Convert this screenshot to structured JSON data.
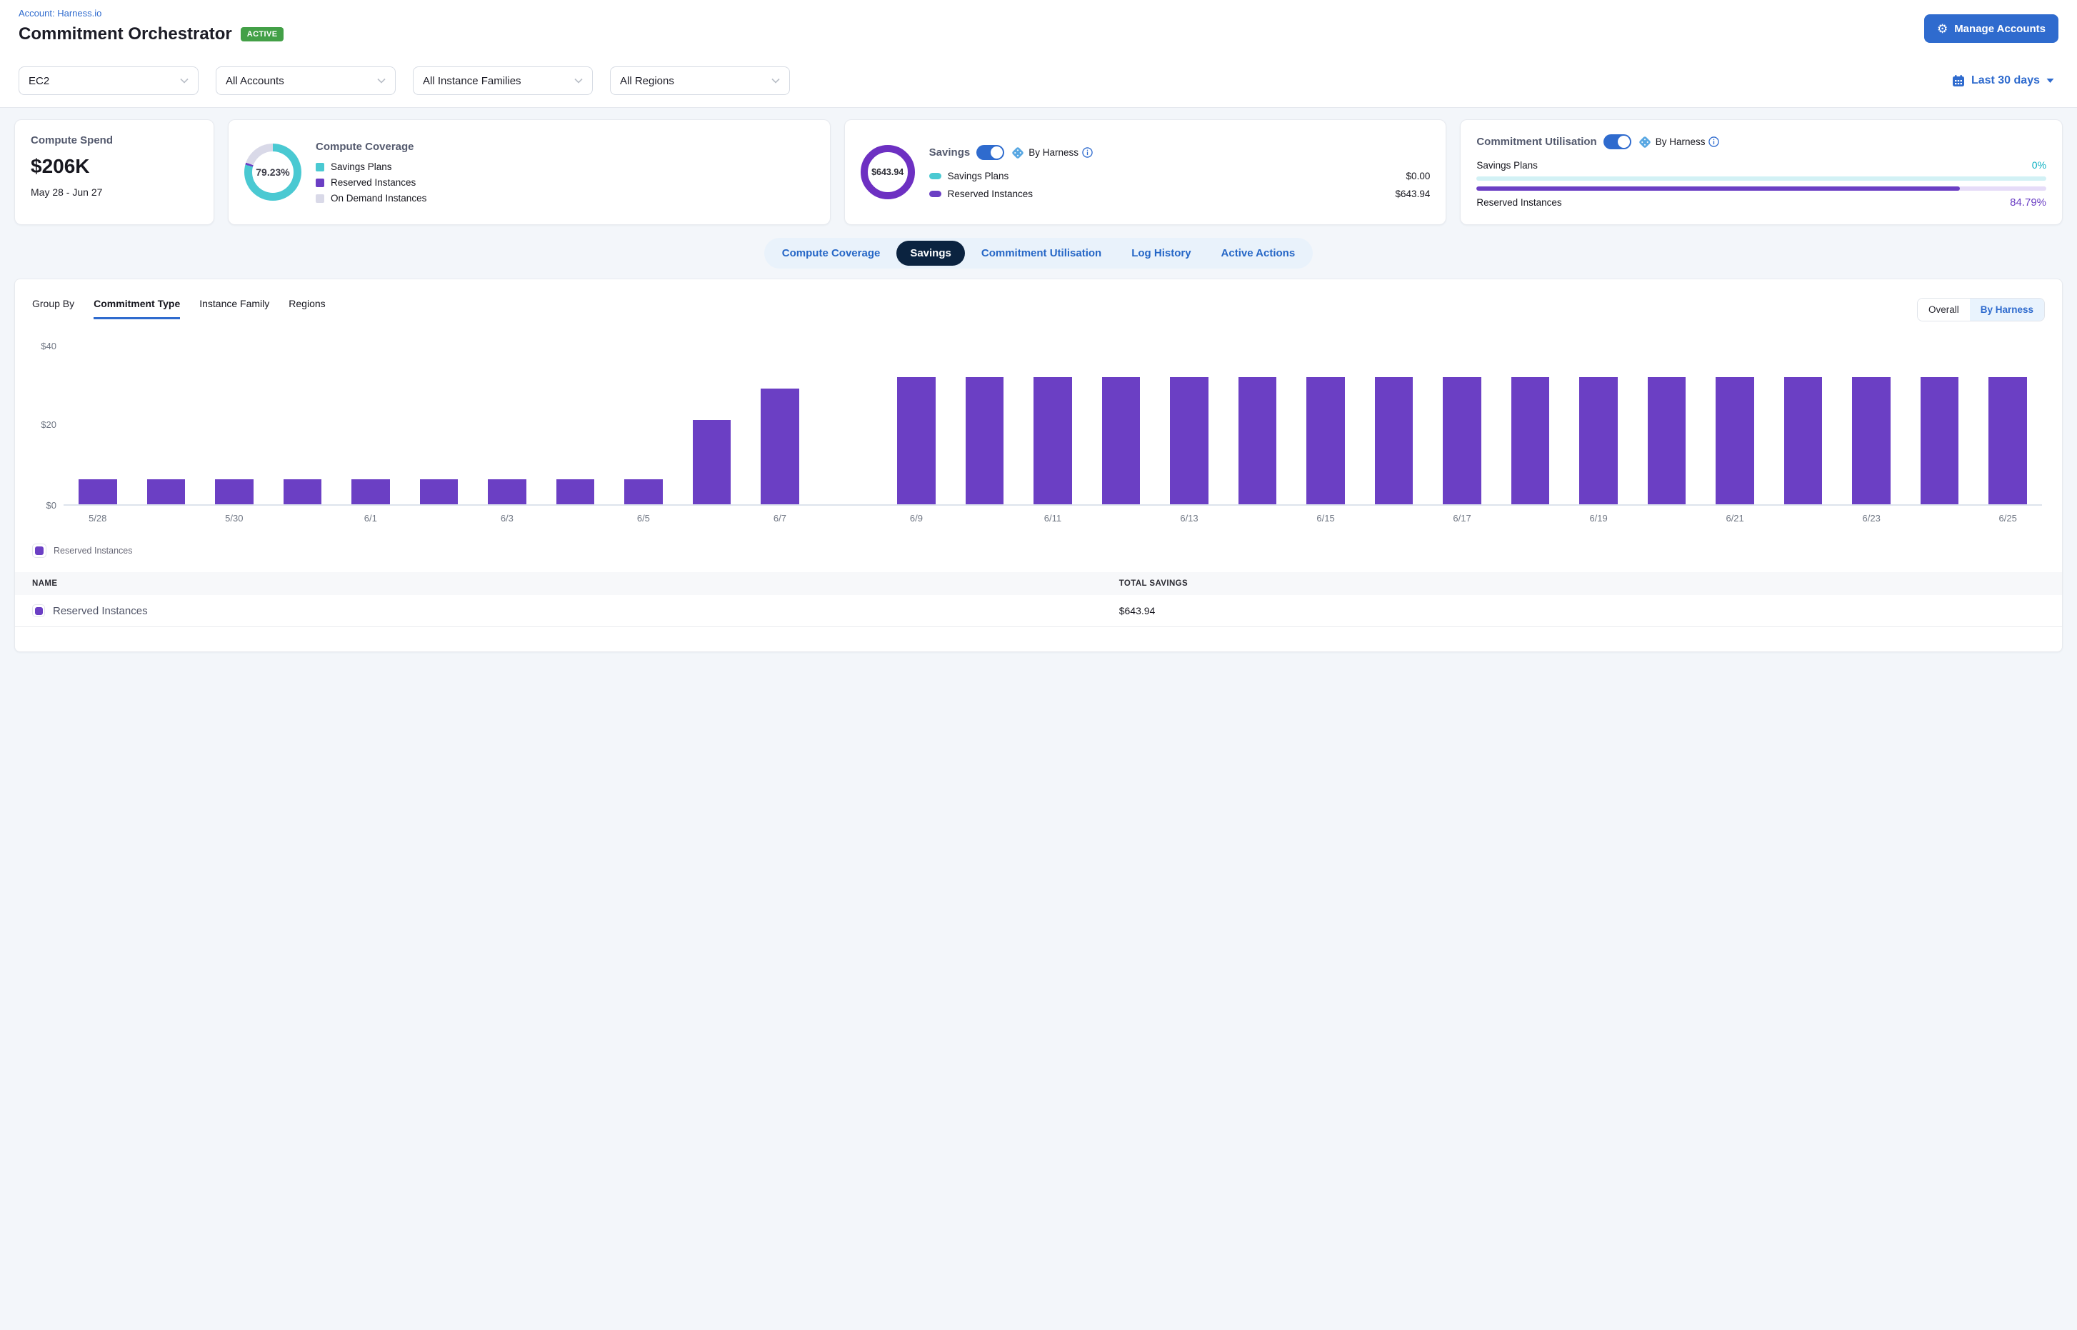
{
  "header": {
    "account_link": "Account: Harness.io",
    "title": "Commitment Orchestrator",
    "status_badge": "ACTIVE",
    "manage_accounts_label": "Manage Accounts"
  },
  "filters": {
    "selects": [
      {
        "name": "service",
        "value": "EC2"
      },
      {
        "name": "accounts",
        "value": "All Accounts"
      },
      {
        "name": "instance-families",
        "value": "All Instance Families"
      },
      {
        "name": "regions",
        "value": "All Regions"
      }
    ],
    "date_range": "Last 30 days"
  },
  "cards": {
    "compute_spend": {
      "title": "Compute Spend",
      "value": "$206K",
      "period": "May 28 - Jun 27"
    },
    "compute_coverage": {
      "title": "Compute Coverage",
      "center_percent": "79.23%",
      "segments": [
        {
          "label": "Savings Plans",
          "percent": 79.23,
          "color": "#4ac9d2"
        },
        {
          "label": "Reserved Instances",
          "percent": 1.2,
          "color": "#6b3fc4"
        },
        {
          "label": "On Demand Instances",
          "percent": 19.57,
          "color": "#d9d9e8"
        }
      ]
    },
    "savings": {
      "title": "Savings",
      "toggle_on": true,
      "by_harness_label": "By Harness",
      "total": "$643.94",
      "rows": [
        {
          "label": "Savings Plans",
          "value": "$0.00",
          "color": "#4ac9d2"
        },
        {
          "label": "Reserved Instances",
          "value": "$643.94",
          "color": "#6b3fc4"
        }
      ]
    },
    "commitment_utilisation": {
      "title": "Commitment Utilisation",
      "toggle_on": true,
      "by_harness_label": "By Harness",
      "rows": [
        {
          "label": "Savings Plans",
          "value": "0%",
          "percent": 0,
          "fill": "#19b8c8",
          "track": "#d2f1f5",
          "value_class": "pct-teal"
        },
        {
          "label": "Reserved Instances",
          "value": "84.79%",
          "percent": 84.79,
          "fill": "#6b3fc4",
          "track": "#e6dcf8",
          "value_class": "pct-purple"
        }
      ]
    }
  },
  "tabs": {
    "items": [
      "Compute Coverage",
      "Savings",
      "Commitment Utilisation",
      "Log History",
      "Active Actions"
    ],
    "active": "Savings"
  },
  "group_by": {
    "label": "Group By",
    "options": [
      "Commitment Type",
      "Instance Family",
      "Regions"
    ],
    "active": "Commitment Type"
  },
  "view_toggle": {
    "options": [
      "Overall",
      "By Harness"
    ],
    "active": "By Harness"
  },
  "chart_data": {
    "type": "bar",
    "title": "",
    "xlabel": "",
    "ylabel": "",
    "ylim": [
      0,
      40
    ],
    "yticks": [
      "$0",
      "$20",
      "$40"
    ],
    "grid": false,
    "legend_position": "bottom-left",
    "series": [
      {
        "name": "Reserved Instances",
        "color": "#6b3fc4",
        "values": [
          6.3,
          6.3,
          6.3,
          6.3,
          6.3,
          6.3,
          6.3,
          6.3,
          6.3,
          21.1,
          29.0,
          0,
          31.7,
          31.7,
          31.7,
          31.7,
          31.7,
          31.7,
          31.7,
          31.7,
          31.7,
          31.7,
          31.7,
          31.7,
          31.7,
          31.7,
          31.7,
          31.7,
          31.7
        ]
      }
    ],
    "x": [
      "5/28",
      "5/29",
      "5/30",
      "5/31",
      "6/1",
      "6/2",
      "6/3",
      "6/4",
      "6/5",
      "6/6",
      "6/7",
      "6/8",
      "6/9",
      "6/10",
      "6/11",
      "6/12",
      "6/13",
      "6/14",
      "6/15",
      "6/16",
      "6/17",
      "6/18",
      "6/19",
      "6/20",
      "6/21",
      "6/22",
      "6/23",
      "6/24",
      "6/25"
    ],
    "xtick_every": 2
  },
  "chart_legend": {
    "label": "Reserved Instances",
    "color": "#6b3fc4"
  },
  "table": {
    "columns": [
      "NAME",
      "TOTAL SAVINGS"
    ],
    "rows": [
      {
        "name": "Reserved Instances",
        "swatch_color": "#6b3fc4",
        "total": "$643.94"
      }
    ]
  },
  "colors": {
    "accent_blue": "#2f6bce",
    "active_tab_navy": "#0b2340",
    "badge_green": "#43a047",
    "purple": "#6b3fc4",
    "teal": "#4ac9d2",
    "lavender": "#d9d9e8",
    "teal_text": "#0ab0c2"
  }
}
